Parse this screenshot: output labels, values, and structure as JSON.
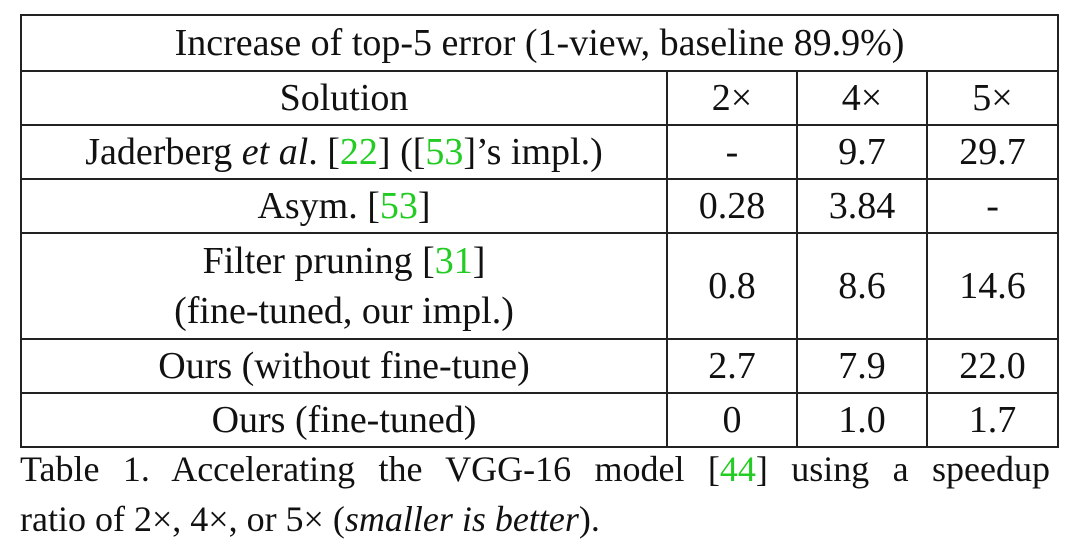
{
  "table": {
    "title": "Increase of top-5 error (1-view, baseline 89.9%)",
    "headers": {
      "solution": "Solution",
      "col1": "2×",
      "col2": "4×",
      "col3": "5×"
    },
    "rows": [
      {
        "solution_pre": "Jaderberg ",
        "solution_italic": "et al",
        "solution_mid": ". [",
        "cite1": "22",
        "solution_mid2": "] ([",
        "cite2": "53",
        "solution_post": "]’s impl.)",
        "v1": "-",
        "v2": "9.7",
        "v3": "29.7"
      },
      {
        "solution_pre": "Asym. [",
        "cite1": "53",
        "solution_post": "]",
        "v1": "0.28",
        "v2": "3.84",
        "v3": "-"
      },
      {
        "solution_line1_pre": "Filter pruning [",
        "cite1": "31",
        "solution_line1_post": "]",
        "solution_line2": "(fine-tuned, our impl.)",
        "v1": "0.8",
        "v2": "8.6",
        "v3": "14.6"
      },
      {
        "solution": "Ours (without fine-tune)",
        "v1": "2.7",
        "v2": "7.9",
        "v3": "22.0"
      },
      {
        "solution": "Ours (fine-tuned)",
        "v1": "0",
        "v2": "1.0",
        "v3": "1.7"
      }
    ]
  },
  "caption": {
    "line1_pre": "Table 1. Accelerating the VGG-16 model [",
    "cite": "44",
    "line1_post": "] using a speedup",
    "line2_pre": "ratio of 2×, 4×, or 5× (",
    "line2_italic": "smaller is better",
    "line2_post": ")."
  }
}
